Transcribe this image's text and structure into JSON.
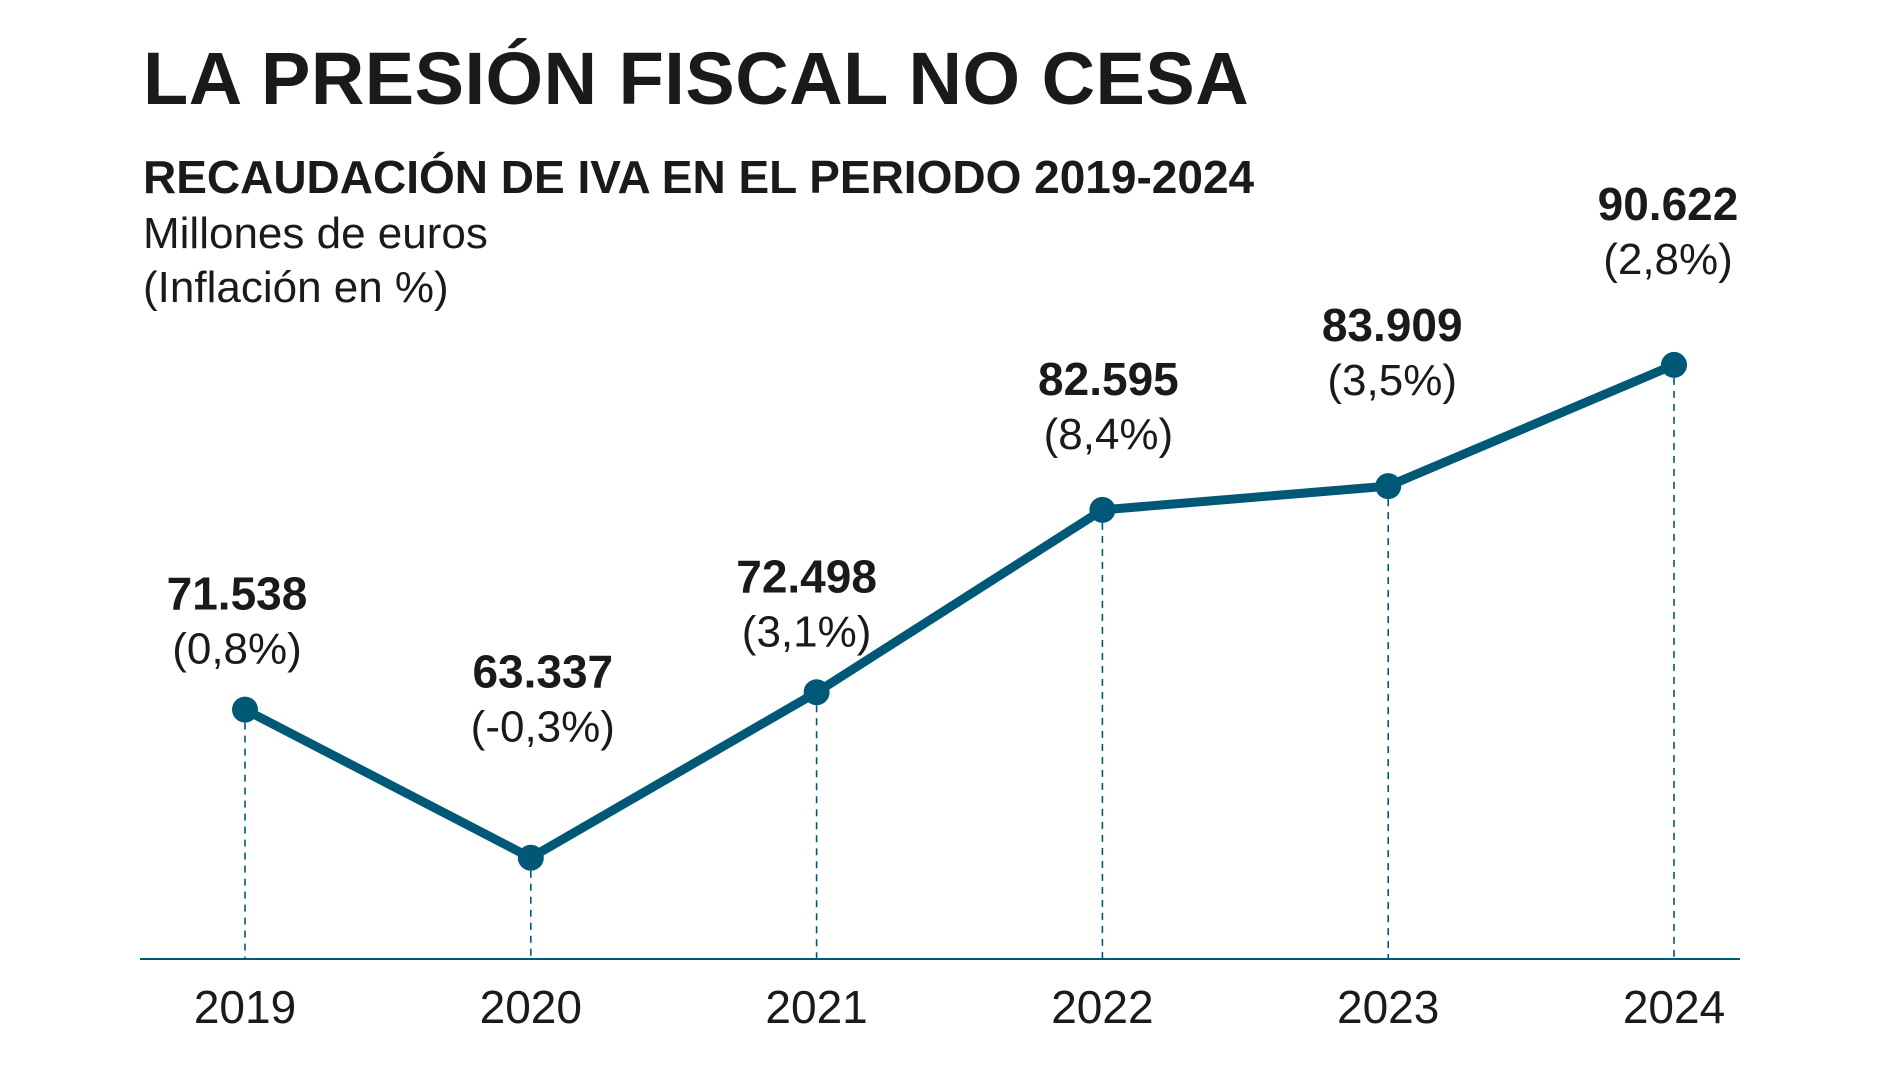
{
  "chart_data": {
    "type": "line",
    "title": "LA PRESIÓN FISCAL NO CESA",
    "subtitle": "RECAUDACIÓN DE IVA EN EL PERIODO 2019-2024",
    "units_line1": "Millones de euros",
    "units_line2": "(Inflación en %)",
    "xlabel": "",
    "ylabel": "",
    "ylim": [
      60000,
      92000
    ],
    "grid": false,
    "categories": [
      "2019",
      "2020",
      "2021",
      "2022",
      "2023",
      "2024"
    ],
    "series": [
      {
        "name": "Recaudación de IVA",
        "values": [
          71538,
          63337,
          72498,
          82595,
          83909,
          90622
        ],
        "value_labels": [
          "71.538",
          "63.337",
          "72.498",
          "82.595",
          "83.909",
          "90.622"
        ],
        "inflation_labels": [
          "(0,8%)",
          "(-0,3%)",
          "(3,1%)",
          "(8,4%)",
          "(3,5%)",
          "(2,8%)"
        ],
        "color": "#005877"
      }
    ],
    "axis_color": "#005877"
  }
}
